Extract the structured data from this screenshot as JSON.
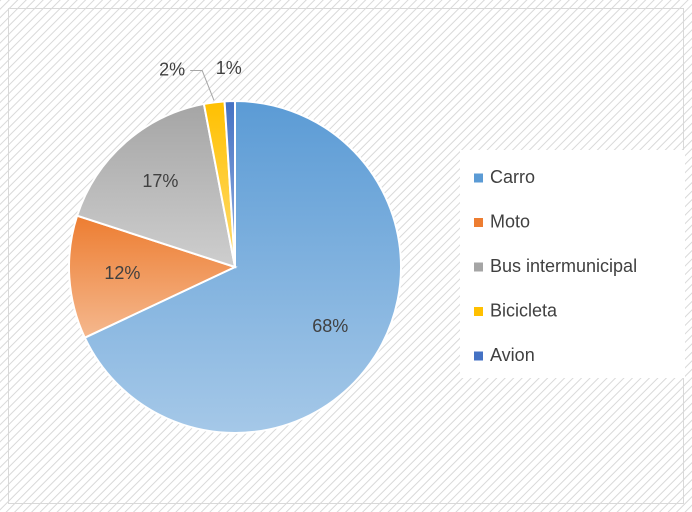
{
  "chart_data": {
    "type": "pie",
    "categories": [
      "Carro",
      "Moto",
      "Bus intermunicipal",
      "Bicicleta",
      "Avion"
    ],
    "values": [
      68,
      12,
      17,
      2,
      1
    ],
    "value_labels": [
      "68%",
      "12%",
      "17%",
      "2%",
      "1%"
    ],
    "colors": [
      "#5b9bd5",
      "#ed7d31",
      "#a5a5a5",
      "#ffc000",
      "#4472c4"
    ],
    "legend": "right"
  }
}
